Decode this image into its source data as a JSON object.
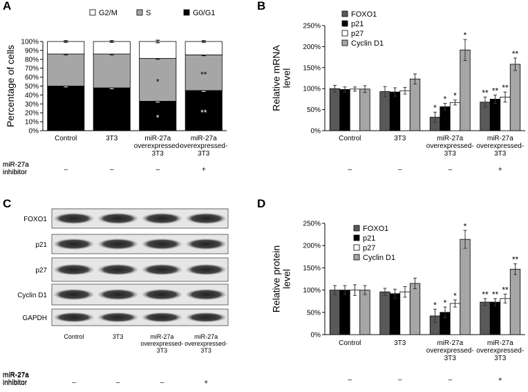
{
  "chart_data": [
    {
      "type": "bar",
      "stacked": true,
      "panel": "A",
      "ylabel": "Percentage of cells",
      "legend": "top",
      "categories": [
        "Control",
        "3T3",
        "miR-27a\noverexpressed-\n3T3",
        "miR-27a\noverexpressed-\n3T3"
      ],
      "series": [
        {
          "name": "G2/M",
          "color": "#ffffff",
          "values": [
            14,
            14,
            19,
            15
          ],
          "errors": [
            1,
            1,
            1.5,
            1
          ],
          "marks": [
            null,
            null,
            null,
            null
          ]
        },
        {
          "name": "S",
          "color": "#a6a6a6",
          "values": [
            36,
            38,
            48,
            40
          ],
          "errors": [
            1,
            1,
            1,
            1
          ],
          "marks": [
            null,
            null,
            "*",
            "**"
          ]
        },
        {
          "name": "G0/G1",
          "color": "#000000",
          "values": [
            50,
            48,
            33,
            45
          ],
          "errors": [
            1,
            1,
            1,
            1
          ],
          "marks": [
            null,
            null,
            "*",
            "**"
          ]
        }
      ],
      "ylim": [
        0,
        100
      ],
      "yticks": [
        {
          "value": 0,
          "label": "0%"
        },
        {
          "value": 10,
          "label": "10%"
        },
        {
          "value": 20,
          "label": "20%"
        },
        {
          "value": 30,
          "label": "30%"
        },
        {
          "value": 40,
          "label": "40%"
        },
        {
          "value": 50,
          "label": "50%"
        },
        {
          "value": 60,
          "label": "60%"
        },
        {
          "value": 70,
          "label": "70%"
        },
        {
          "value": 80,
          "label": "80%"
        },
        {
          "value": 90,
          "label": "90%"
        },
        {
          "value": 100,
          "label": "100%"
        }
      ],
      "inhibitor_label": "miR-27a\ninhibitor",
      "inhibitor": [
        "–",
        "–",
        "–",
        "+"
      ]
    },
    {
      "type": "bar",
      "stacked": false,
      "panel": "B",
      "ylabel": "Relative mRNA\nlevel",
      "legend": "upper left",
      "categories": [
        "Control",
        "3T3",
        "miR-27a\noverexpressed-\n3T3",
        "miR-27a\noverexpressed-\n3T3"
      ],
      "series": [
        {
          "name": "FOXO1",
          "color": "#595959",
          "values": [
            100,
            93,
            32,
            68
          ],
          "errors": [
            8,
            12,
            12,
            12
          ],
          "marks": [
            null,
            null,
            "*",
            "**"
          ]
        },
        {
          "name": "p21",
          "color": "#000000",
          "values": [
            98,
            92,
            57,
            75
          ],
          "errors": [
            6,
            10,
            8,
            10
          ],
          "marks": [
            null,
            null,
            "*",
            "**"
          ]
        },
        {
          "name": "p27",
          "color": "#ffffff",
          "values": [
            99,
            95,
            67,
            80
          ],
          "errors": [
            5,
            8,
            6,
            12
          ],
          "marks": [
            null,
            null,
            "*",
            "**"
          ]
        },
        {
          "name": "Cyclin D1",
          "color": "#a6a6a6",
          "values": [
            99,
            123,
            192,
            158
          ],
          "errors": [
            8,
            12,
            25,
            15
          ],
          "marks": [
            null,
            null,
            "*",
            "**"
          ]
        }
      ],
      "ylim": [
        0,
        250
      ],
      "yticks": [
        {
          "value": 0,
          "label": "0%"
        },
        {
          "value": 50,
          "label": "50%"
        },
        {
          "value": 100,
          "label": "100%"
        },
        {
          "value": 150,
          "label": "150%"
        },
        {
          "value": 200,
          "label": "200%"
        },
        {
          "value": 250,
          "label": "250%"
        }
      ],
      "inhibitor_label": "miR-27a\ninhibitor",
      "inhibitor": [
        "–",
        "–",
        "–",
        "+"
      ]
    },
    {
      "type": "bar",
      "stacked": false,
      "panel": "D",
      "ylabel": "Relative protein\nlevel",
      "legend": "upper left",
      "categories": [
        "Control",
        "3T3",
        "miR-27a\noverexpressed-\n3T3",
        "miR-27a\noverexpressed-\n3T3"
      ],
      "series": [
        {
          "name": "FOXO1",
          "color": "#595959",
          "values": [
            100,
            96,
            42,
            73
          ],
          "errors": [
            10,
            8,
            15,
            8
          ],
          "marks": [
            null,
            null,
            "*",
            "**"
          ]
        },
        {
          "name": "p21",
          "color": "#000000",
          "values": [
            100,
            92,
            50,
            73
          ],
          "errors": [
            10,
            10,
            12,
            8
          ],
          "marks": [
            null,
            null,
            "*",
            "**"
          ]
        },
        {
          "name": "p27",
          "color": "#ffffff",
          "values": [
            100,
            96,
            70,
            81
          ],
          "errors": [
            12,
            12,
            8,
            10
          ],
          "marks": [
            null,
            null,
            "*",
            "**"
          ]
        },
        {
          "name": "Cyclin D1",
          "color": "#a6a6a6",
          "values": [
            100,
            115,
            214,
            147
          ],
          "errors": [
            10,
            12,
            20,
            12
          ],
          "marks": [
            null,
            null,
            "*",
            "**"
          ]
        }
      ],
      "ylim": [
        0,
        250
      ],
      "yticks": [
        {
          "value": 0,
          "label": "0%"
        },
        {
          "value": 50,
          "label": "50%"
        },
        {
          "value": 100,
          "label": "100%"
        },
        {
          "value": 150,
          "label": "150%"
        },
        {
          "value": 200,
          "label": "200%"
        },
        {
          "value": 250,
          "label": "250%"
        }
      ],
      "inhibitor_label": "miR-27a\ninhibitor",
      "inhibitor": [
        "–",
        "–",
        "–",
        "+"
      ]
    }
  ],
  "blot": {
    "panel": "C",
    "rows": [
      "FOXO1",
      "p21",
      "p27",
      "Cyclin D1",
      "GAPDH"
    ],
    "columns": [
      "Control",
      "3T3",
      "miR-27a\noverexpressed-\n3T3",
      "miR-27a\noverexpressed-\n3T3"
    ],
    "inhibitor_label": "miR-27a\ninhibitor",
    "inhibitor": [
      "–",
      "–",
      "–",
      "+"
    ]
  }
}
